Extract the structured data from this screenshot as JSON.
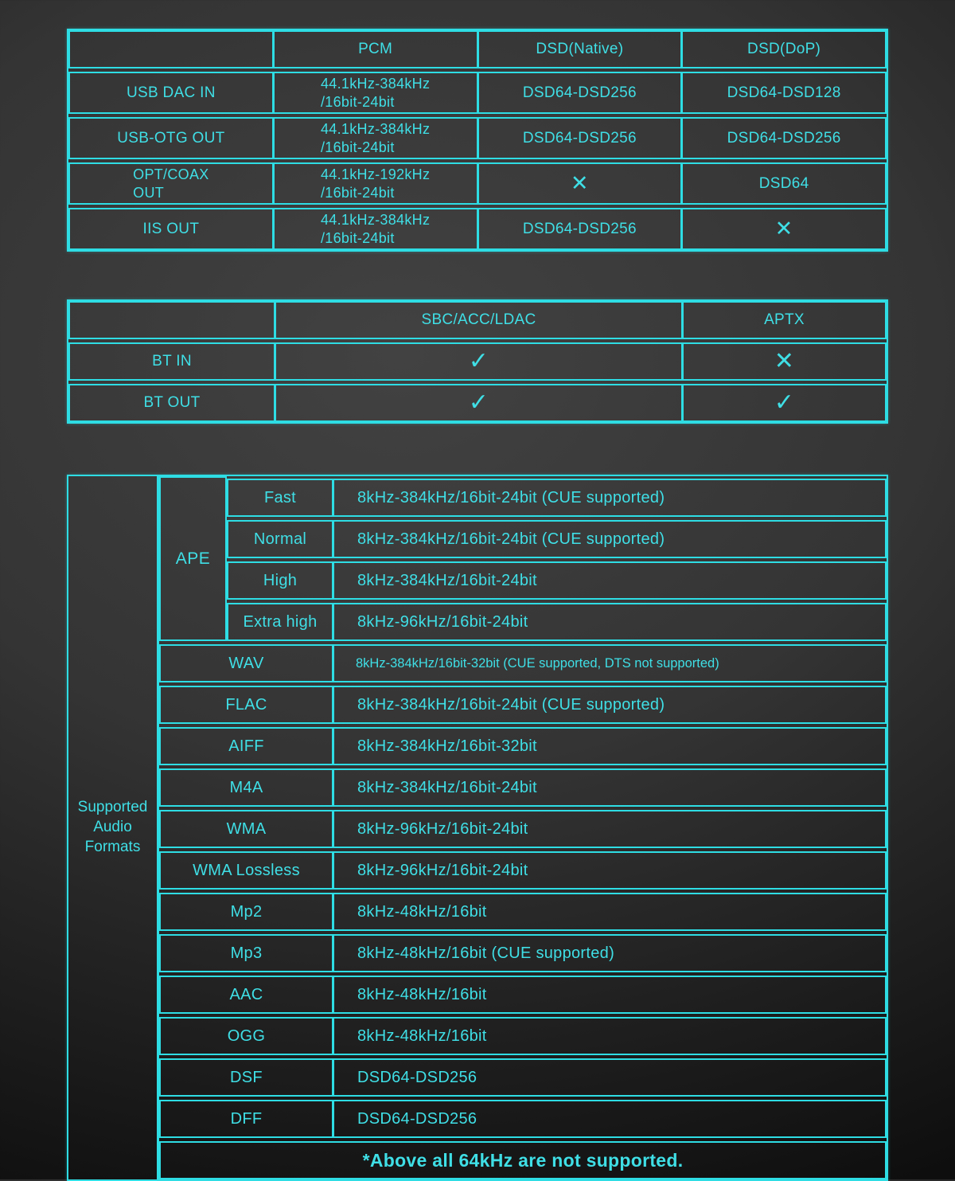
{
  "colors": {
    "accent_cyan": "#2eddе4",
    "background_center": "#424242",
    "background_edge": "#0e0e0e"
  },
  "glyphs": {
    "check": "✓",
    "cross": "✕"
  },
  "table1": {
    "headers": [
      "",
      "PCM",
      "DSD(Native)",
      "DSD(DoP)"
    ],
    "rows": [
      {
        "label": "USB DAC IN",
        "pcm": "44.1kHz-384kHz\n/16bit-24bit",
        "dsd_native": "DSD64-DSD256",
        "dsd_dop": "DSD64-DSD128"
      },
      {
        "label": "USB-OTG OUT",
        "pcm": "44.1kHz-384kHz\n/16bit-24bit",
        "dsd_native": "DSD64-DSD256",
        "dsd_dop": "DSD64-DSD256"
      },
      {
        "label": "OPT/COAX\nOUT",
        "pcm": "44.1kHz-192kHz\n/16bit-24bit",
        "dsd_native": "✕",
        "dsd_dop": "DSD64"
      },
      {
        "label": "IIS OUT",
        "pcm": "44.1kHz-384kHz\n/16bit-24bit",
        "dsd_native": "DSD64-DSD256",
        "dsd_dop": "✕"
      }
    ]
  },
  "table2": {
    "headers": [
      "",
      "SBC/ACC/LDAC",
      "APTX"
    ],
    "rows": [
      {
        "label": "BT IN",
        "sbc_acc_ldac": "✓",
        "aptx": "✕"
      },
      {
        "label": "BT OUT",
        "sbc_acc_ldac": "✓",
        "aptx": "✓"
      }
    ]
  },
  "table3": {
    "side_label": "Supported Audio Formats",
    "ape": {
      "label": "APE",
      "subrows": [
        {
          "name": "Fast",
          "value": "8kHz-384kHz/16bit-24bit (CUE supported)"
        },
        {
          "name": "Normal",
          "value": "8kHz-384kHz/16bit-24bit (CUE supported)"
        },
        {
          "name": "High",
          "value": "8kHz-384kHz/16bit-24bit"
        },
        {
          "name": "Extra high",
          "value": "8kHz-96kHz/16bit-24bit"
        }
      ]
    },
    "rows": [
      {
        "name": "WAV",
        "value": "8kHz-384kHz/16bit-32bit (CUE supported, DTS not supported)"
      },
      {
        "name": "FLAC",
        "value": "8kHz-384kHz/16bit-24bit (CUE supported)"
      },
      {
        "name": "AIFF",
        "value": "8kHz-384kHz/16bit-32bit"
      },
      {
        "name": "M4A",
        "value": "8kHz-384kHz/16bit-24bit"
      },
      {
        "name": "WMA",
        "value": "8kHz-96kHz/16bit-24bit"
      },
      {
        "name": "WMA Lossless",
        "value": "8kHz-96kHz/16bit-24bit"
      },
      {
        "name": "Mp2",
        "value": "8kHz-48kHz/16bit"
      },
      {
        "name": "Mp3",
        "value": "8kHz-48kHz/16bit (CUE supported)"
      },
      {
        "name": "AAC",
        "value": "8kHz-48kHz/16bit"
      },
      {
        "name": "OGG",
        "value": "8kHz-48kHz/16bit"
      },
      {
        "name": "DSF",
        "value": "DSD64-DSD256"
      },
      {
        "name": "DFF",
        "value": "DSD64-DSD256"
      }
    ],
    "footer": "*Above all 64kHz are not supported."
  }
}
